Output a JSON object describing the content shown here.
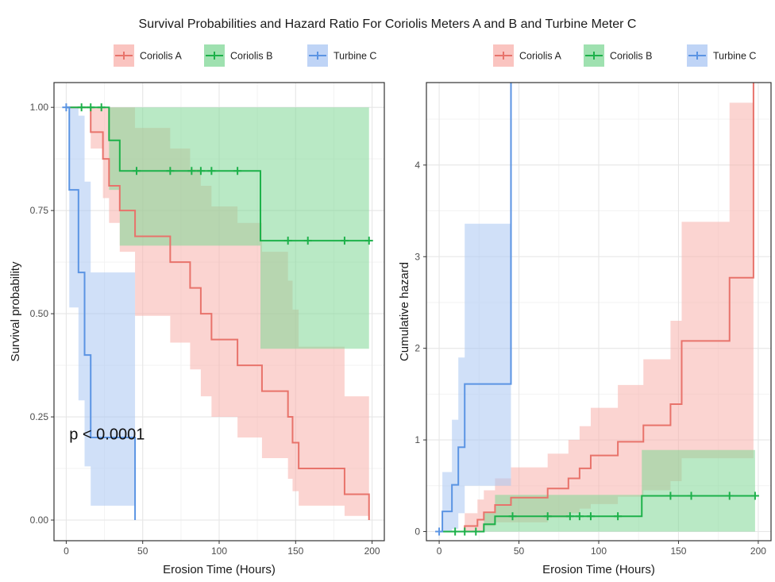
{
  "title": "Survival Probabilities and Hazard Ratio For Coriolis Meters A and B and Turbine Meter C",
  "colors": {
    "coriolis_a": "#e8736b",
    "coriolis_b": "#1db14a",
    "turbine_c": "#5b94e3",
    "coriolis_a_band": "#f8b0ab",
    "coriolis_b_band": "#7fd795",
    "turbine_c_band": "#a9c6f3",
    "panel_border": "#333333",
    "grid_major": "#e6e6e6",
    "grid_minor": "#f3f3f3"
  },
  "legend": {
    "placement": "top",
    "items": [
      "Coriolis A",
      "Coriolis B",
      "Turbine C"
    ]
  },
  "chart_data": [
    {
      "type": "line",
      "subtype": "kaplan-meier step",
      "xlabel": "Erosion Time (Hours)",
      "ylabel": "Survival probability",
      "xlim": [
        -8,
        208
      ],
      "ylim": [
        -0.05,
        1.06
      ],
      "xticks": [
        0,
        50,
        100,
        150,
        200
      ],
      "xtick_labels": [
        "0",
        "50",
        "100",
        "150",
        "200"
      ],
      "yticks": [
        0,
        0.25,
        0.5,
        0.75,
        1.0
      ],
      "ytick_labels": [
        "0.00",
        "0.25",
        "0.50",
        "0.75",
        "1.00"
      ],
      "grid": true,
      "annotation": "p < 0.0001",
      "annotation_pos": [
        2,
        0.195
      ],
      "series": [
        {
          "name": "Coriolis A",
          "steps": [
            [
              0,
              1.0
            ],
            [
              16,
              0.94
            ],
            [
              24,
              0.875
            ],
            [
              28,
              0.81
            ],
            [
              35,
              0.75
            ],
            [
              45,
              0.6875
            ],
            [
              68,
              0.625
            ],
            [
              81,
              0.5625
            ],
            [
              88,
              0.5
            ],
            [
              95,
              0.4375
            ],
            [
              112,
              0.375
            ],
            [
              128,
              0.3125
            ],
            [
              145,
              0.25
            ],
            [
              148,
              0.1875
            ],
            [
              152,
              0.125
            ],
            [
              182,
              0.0625
            ],
            [
              198,
              0.0
            ]
          ],
          "band_upper": [
            [
              0,
              1.0
            ],
            [
              16,
              1.0
            ],
            [
              24,
              1.0
            ],
            [
              28,
              1.0
            ],
            [
              35,
              1.0
            ],
            [
              45,
              0.95
            ],
            [
              68,
              0.9
            ],
            [
              81,
              0.85
            ],
            [
              88,
              0.81
            ],
            [
              95,
              0.76
            ],
            [
              112,
              0.72
            ],
            [
              128,
              0.65
            ],
            [
              145,
              0.58
            ],
            [
              148,
              0.51
            ],
            [
              152,
              0.42
            ],
            [
              182,
              0.3
            ],
            [
              198,
              0.3
            ]
          ],
          "band_lower": [
            [
              0,
              1.0
            ],
            [
              16,
              0.9
            ],
            [
              24,
              0.78
            ],
            [
              28,
              0.72
            ],
            [
              35,
              0.65
            ],
            [
              45,
              0.495
            ],
            [
              68,
              0.43
            ],
            [
              81,
              0.365
            ],
            [
              88,
              0.3
            ],
            [
              95,
              0.25
            ],
            [
              112,
              0.2
            ],
            [
              128,
              0.15
            ],
            [
              145,
              0.1
            ],
            [
              148,
              0.07
            ],
            [
              152,
              0.035
            ],
            [
              182,
              0.01
            ],
            [
              198,
              0.01
            ]
          ],
          "censor_x": []
        },
        {
          "name": "Coriolis B",
          "steps": [
            [
              0,
              1.0
            ],
            [
              28,
              0.92
            ],
            [
              35,
              0.846
            ],
            [
              127,
              0.677
            ],
            [
              198,
              0.677
            ]
          ],
          "band_upper": [
            [
              0,
              1.0
            ],
            [
              28,
              1.0
            ],
            [
              35,
              1.0
            ],
            [
              127,
              1.0
            ],
            [
              198,
              1.0
            ]
          ],
          "band_lower": [
            [
              0,
              1.0
            ],
            [
              28,
              0.8
            ],
            [
              35,
              0.665
            ],
            [
              127,
              0.415
            ],
            [
              198,
              0.415
            ]
          ],
          "censor_x": [
            10,
            16,
            23,
            46,
            68,
            82,
            88,
            95,
            112,
            145,
            158,
            182,
            198
          ]
        },
        {
          "name": "Turbine C",
          "steps": [
            [
              0,
              1.0
            ],
            [
              2,
              0.8
            ],
            [
              8,
              0.6
            ],
            [
              12,
              0.4
            ],
            [
              16,
              0.2
            ],
            [
              45,
              0.0
            ]
          ],
          "band_upper": [
            [
              0,
              1.0
            ],
            [
              2,
              1.0
            ],
            [
              8,
              0.98
            ],
            [
              12,
              0.82
            ],
            [
              16,
              0.6
            ],
            [
              45,
              0.6
            ]
          ],
          "band_lower": [
            [
              0,
              1.0
            ],
            [
              2,
              0.515
            ],
            [
              8,
              0.29
            ],
            [
              12,
              0.13
            ],
            [
              16,
              0.035
            ],
            [
              45,
              0.035
            ]
          ],
          "censor_x": [
            0
          ]
        }
      ]
    },
    {
      "type": "line",
      "subtype": "cumulative hazard step",
      "xlabel": "Erosion Time (Hours)",
      "ylabel": "Cumulative hazard",
      "xlim": [
        -8,
        208
      ],
      "ylim": [
        -0.1,
        4.9
      ],
      "xticks": [
        0,
        50,
        100,
        150,
        200
      ],
      "xtick_labels": [
        "0",
        "50",
        "100",
        "150",
        "200"
      ],
      "yticks": [
        0,
        1,
        2,
        3,
        4
      ],
      "ytick_labels": [
        "0",
        "1",
        "2",
        "3",
        "4"
      ],
      "grid": true,
      "series": [
        {
          "name": "Coriolis A",
          "steps": [
            [
              0,
              0.0
            ],
            [
              16,
              0.06
            ],
            [
              24,
              0.13
            ],
            [
              28,
              0.21
            ],
            [
              35,
              0.29
            ],
            [
              45,
              0.37
            ],
            [
              68,
              0.47
            ],
            [
              81,
              0.58
            ],
            [
              88,
              0.69
            ],
            [
              95,
              0.83
            ],
            [
              112,
              0.98
            ],
            [
              128,
              1.16
            ],
            [
              145,
              1.39
            ],
            [
              152,
              2.08
            ],
            [
              182,
              2.77
            ],
            [
              197,
              4.9
            ]
          ],
          "band_upper": [
            [
              0,
              0.0
            ],
            [
              16,
              0.2
            ],
            [
              24,
              0.35
            ],
            [
              28,
              0.45
            ],
            [
              35,
              0.58
            ],
            [
              45,
              0.7
            ],
            [
              68,
              0.85
            ],
            [
              81,
              1.0
            ],
            [
              88,
              1.15
            ],
            [
              95,
              1.35
            ],
            [
              112,
              1.6
            ],
            [
              128,
              1.88
            ],
            [
              145,
              2.3
            ],
            [
              152,
              3.38
            ],
            [
              182,
              4.68
            ],
            [
              197,
              4.68
            ]
          ],
          "band_lower": [
            [
              0,
              0.0
            ],
            [
              16,
              0.0
            ],
            [
              24,
              0.0
            ],
            [
              28,
              0.06
            ],
            [
              35,
              0.1
            ],
            [
              45,
              0.1
            ],
            [
              68,
              0.15
            ],
            [
              81,
              0.2
            ],
            [
              88,
              0.25
            ],
            [
              95,
              0.3
            ],
            [
              112,
              0.38
            ],
            [
              128,
              0.45
            ],
            [
              145,
              0.55
            ],
            [
              152,
              0.8
            ],
            [
              182,
              0.8
            ],
            [
              197,
              0.8
            ]
          ],
          "censor_x": []
        },
        {
          "name": "Coriolis B",
          "steps": [
            [
              0,
              0.0
            ],
            [
              28,
              0.08
            ],
            [
              35,
              0.167
            ],
            [
              127,
              0.39
            ],
            [
              198,
              0.39
            ]
          ],
          "band_upper": [
            [
              0,
              0.0
            ],
            [
              28,
              0.2
            ],
            [
              35,
              0.4
            ],
            [
              127,
              0.89
            ],
            [
              198,
              0.89
            ]
          ],
          "band_lower": [
            [
              0,
              0.0
            ],
            [
              28,
              0.0
            ],
            [
              35,
              0.0
            ],
            [
              127,
              0.0
            ],
            [
              198,
              0.0
            ]
          ],
          "censor_x": [
            10,
            16,
            23,
            46,
            68,
            82,
            88,
            95,
            112,
            145,
            158,
            182,
            198
          ]
        },
        {
          "name": "Turbine C",
          "steps": [
            [
              0,
              0.0
            ],
            [
              2,
              0.22
            ],
            [
              8,
              0.51
            ],
            [
              12,
              0.92
            ],
            [
              16,
              1.61
            ],
            [
              45,
              4.9
            ]
          ],
          "band_upper": [
            [
              0,
              0.0
            ],
            [
              2,
              0.65
            ],
            [
              8,
              1.22
            ],
            [
              12,
              1.9
            ],
            [
              16,
              3.36
            ],
            [
              45,
              3.36
            ]
          ],
          "band_lower": [
            [
              0,
              0.0
            ],
            [
              2,
              0.0
            ],
            [
              8,
              0.03
            ],
            [
              12,
              0.2
            ],
            [
              16,
              0.5
            ],
            [
              45,
              0.5
            ]
          ],
          "censor_x": [
            0
          ]
        }
      ]
    }
  ]
}
